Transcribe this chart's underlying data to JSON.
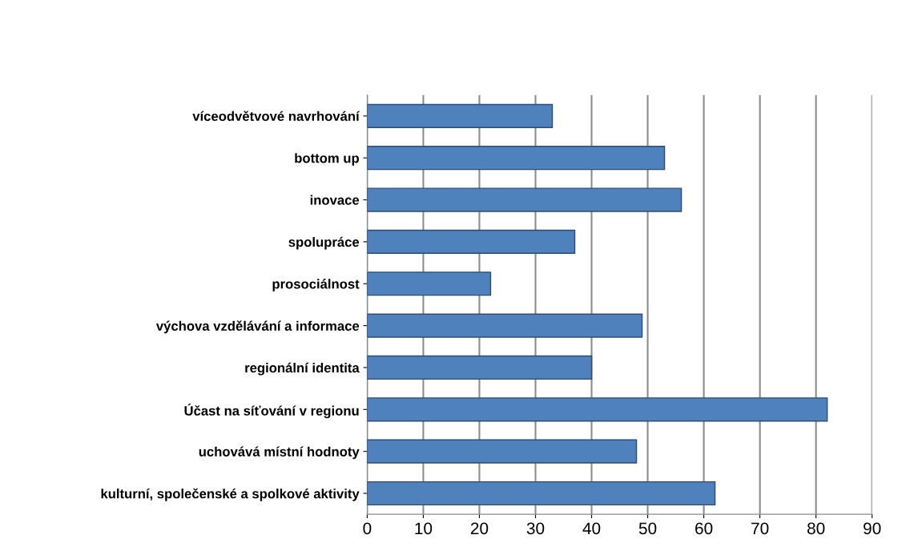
{
  "chart_data": {
    "type": "bar",
    "orientation": "horizontal",
    "categories": [
      "víceodvětvové navrhování",
      "bottom up",
      "inovace",
      "spolupráce",
      "prosociálnost",
      "výchova vzdělávání a informace",
      "regionální identita",
      "Účast na síťování v regionu",
      "uchovává místní hodnoty",
      "kulturní, společenské a spolkové aktivity"
    ],
    "values": [
      33,
      53,
      56,
      37,
      22,
      49,
      40,
      82,
      48,
      62
    ],
    "color": "#4f81bd",
    "xlim": [
      0,
      90
    ],
    "xticks": [
      0,
      10,
      20,
      30,
      40,
      50,
      60,
      70,
      80,
      90
    ],
    "grid": "x",
    "legend": false
  }
}
